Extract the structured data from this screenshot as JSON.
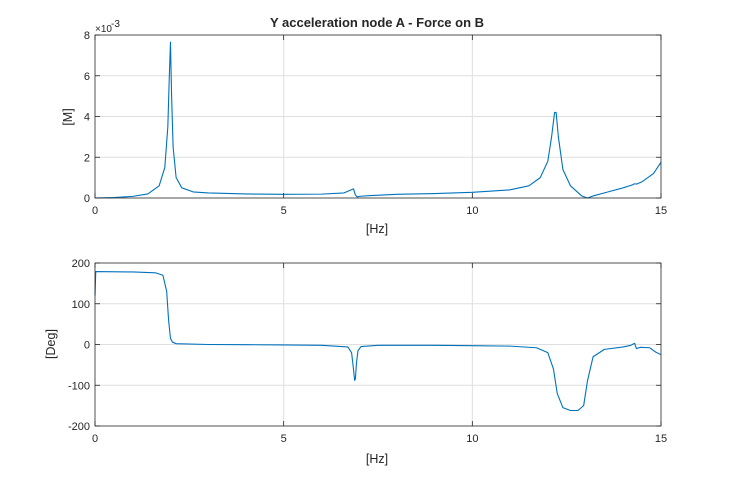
{
  "chart_data": [
    {
      "type": "line",
      "title": "Y acceleration node A - Force on B",
      "xlabel": "[Hz]",
      "ylabel": "[M]",
      "xlim": [
        0,
        15
      ],
      "ylim": [
        0,
        0.008
      ],
      "y_exponent_label": "×10",
      "y_exponent_power": "-3",
      "xticks": [
        0,
        5,
        10,
        15
      ],
      "xtick_labels": [
        "0",
        "5",
        "10",
        "15"
      ],
      "yticks": [
        0,
        0.002,
        0.004,
        0.006,
        0.008
      ],
      "ytick_labels": [
        "0",
        "2",
        "4",
        "6",
        "8"
      ],
      "grid": true,
      "line_color": "#0072BD",
      "series": [
        {
          "x": [
            0,
            0.5,
            1.0,
            1.4,
            1.7,
            1.85,
            1.93,
            1.97,
            2.0,
            2.03,
            2.07,
            2.15,
            2.3,
            2.6,
            3.0,
            4.0,
            5.0,
            6.0,
            6.6,
            6.85,
            6.9,
            6.95,
            7.0,
            7.3,
            8.0,
            9.0,
            10.0,
            11.0,
            11.5,
            11.8,
            12.0,
            12.1,
            12.18,
            12.22,
            12.28,
            12.4,
            12.6,
            12.9,
            13.05,
            13.2,
            13.6,
            14.0,
            14.25,
            14.3,
            14.35,
            14.5,
            14.8,
            15.0
          ],
          "y": [
            0.0,
            2e-05,
            8e-05,
            0.0002,
            0.0006,
            0.0015,
            0.0035,
            0.006,
            0.00765,
            0.005,
            0.0025,
            0.001,
            0.0005,
            0.0003,
            0.00025,
            0.0002,
            0.00018,
            0.00019,
            0.00025,
            0.00045,
            0.00015,
            5e-05,
            8e-05,
            0.00012,
            0.00018,
            0.00022,
            0.00028,
            0.0004,
            0.0006,
            0.001,
            0.0018,
            0.003,
            0.0042,
            0.0042,
            0.003,
            0.0014,
            0.0006,
            0.0001,
            0.0,
            0.0001,
            0.0003,
            0.0005,
            0.00065,
            0.0007,
            0.00068,
            0.0008,
            0.0012,
            0.00175
          ]
        }
      ]
    },
    {
      "type": "line",
      "title": "",
      "xlabel": "[Hz]",
      "ylabel": "[Deg]",
      "xlim": [
        0,
        15
      ],
      "ylim": [
        -200,
        200
      ],
      "xticks": [
        0,
        5,
        10,
        15
      ],
      "xtick_labels": [
        "0",
        "5",
        "10",
        "15"
      ],
      "yticks": [
        -200,
        -100,
        0,
        100,
        200
      ],
      "ytick_labels": [
        "-200",
        "-100",
        "0",
        "100",
        "200"
      ],
      "grid": true,
      "line_color": "#0072BD",
      "series": [
        {
          "x": [
            0,
            0.02,
            1.0,
            1.6,
            1.8,
            1.9,
            1.95,
            2.0,
            2.05,
            2.15,
            3.0,
            4.0,
            5.0,
            6.0,
            6.7,
            6.8,
            6.85,
            6.88,
            6.9,
            6.93,
            6.97,
            7.05,
            7.5,
            9.0,
            10.0,
            11.0,
            11.7,
            12.0,
            12.15,
            12.25,
            12.4,
            12.6,
            12.8,
            12.95,
            13.05,
            13.2,
            13.5,
            14.0,
            14.2,
            14.3,
            14.35,
            14.45,
            14.7,
            14.85,
            15.0
          ],
          "y": [
            120,
            179,
            178,
            176,
            170,
            130,
            60,
            15,
            6,
            2,
            0,
            -0.5,
            -1,
            -2,
            -6,
            -20,
            -60,
            -88,
            -85,
            -45,
            -15,
            -5,
            -2,
            -2,
            -3,
            -4,
            -8,
            -20,
            -60,
            -120,
            -155,
            -162,
            -162,
            -150,
            -90,
            -30,
            -12,
            -6,
            -2,
            3,
            -10,
            -7,
            -8,
            -18,
            -25
          ]
        }
      ]
    }
  ]
}
